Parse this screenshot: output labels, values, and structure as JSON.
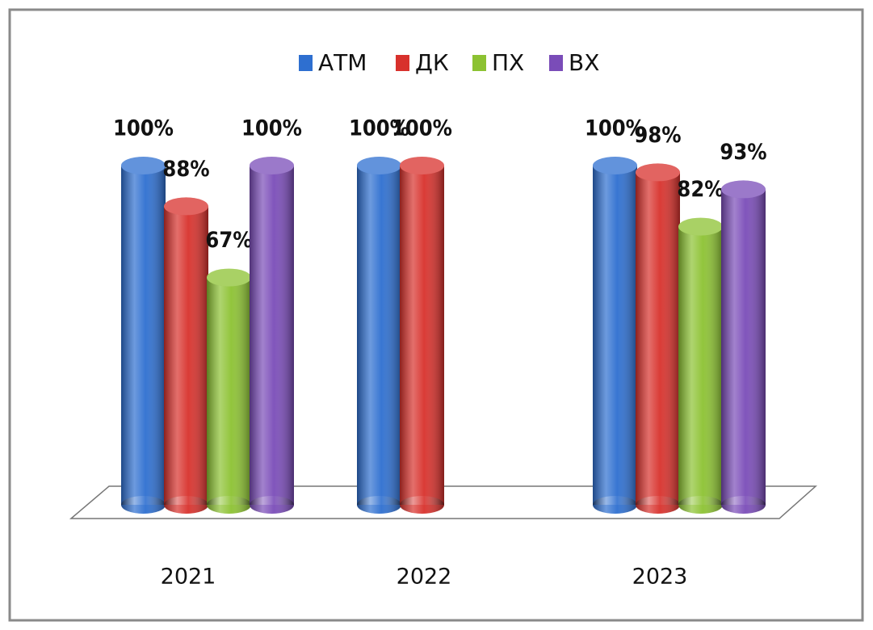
{
  "chart_data": {
    "type": "bar3d",
    "categories": [
      "2021",
      "2022",
      "2023"
    ],
    "series": [
      {
        "name": "АТМ",
        "color": "#2e6fd0",
        "values": [
          100,
          100,
          100
        ],
        "value_labels": [
          "100%",
          "100%",
          "100%"
        ]
      },
      {
        "name": "ДК",
        "color": "#d8312c",
        "values": [
          88,
          100,
          98
        ],
        "value_labels": [
          "88%",
          "100%",
          "98%"
        ]
      },
      {
        "name": "ПХ",
        "color": "#8cc232",
        "values": [
          67,
          null,
          82
        ],
        "value_labels": [
          "67%",
          null,
          "82%"
        ]
      },
      {
        "name": "ВХ",
        "color": "#7a4cb8",
        "values": [
          100,
          null,
          93
        ],
        "value_labels": [
          "100%",
          null,
          "93%"
        ]
      }
    ],
    "legend": "top"
  }
}
